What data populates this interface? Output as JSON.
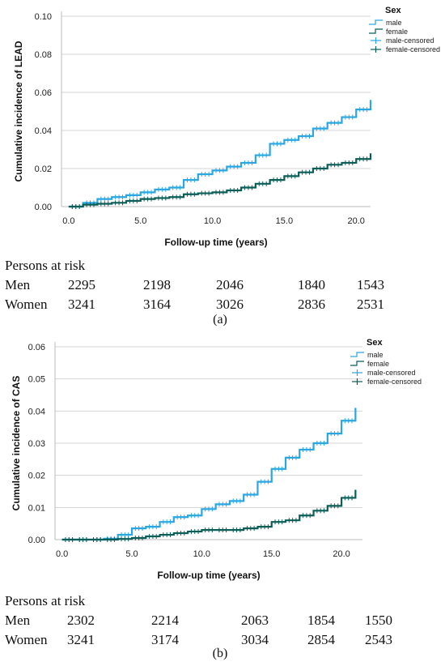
{
  "chart_data": [
    {
      "type": "line",
      "ylabel": "Cumulative incidence of LEAD",
      "xlabel": "Follow-up time (years)",
      "xlim": [
        -0.5,
        21
      ],
      "ylim": [
        0,
        0.1
      ],
      "x_ticks": [
        "0.0",
        "5.0",
        "10.0",
        "15.0",
        "20.0"
      ],
      "y_ticks": [
        "0.00",
        "0.02",
        "0.04",
        "0.06",
        "0.08",
        "0.10"
      ],
      "grid": true,
      "legend_position": "top-right",
      "legend": {
        "title": "Sex",
        "entries": [
          "male",
          "female",
          "male-censored",
          "female-censored"
        ]
      },
      "series": [
        {
          "name": "male",
          "color": "#2aa7e2",
          "x": [
            0,
            1,
            2,
            3,
            4,
            5,
            6,
            7,
            8,
            9,
            10,
            11,
            12,
            13,
            14,
            15,
            16,
            17,
            18,
            19,
            20,
            21
          ],
          "y": [
            0,
            0.002,
            0.004,
            0.005,
            0.006,
            0.0075,
            0.009,
            0.01,
            0.014,
            0.017,
            0.019,
            0.021,
            0.023,
            0.027,
            0.033,
            0.035,
            0.037,
            0.041,
            0.044,
            0.047,
            0.051,
            0.056
          ]
        },
        {
          "name": "female",
          "color": "#0b5e57",
          "x": [
            0,
            1,
            2,
            3,
            4,
            5,
            6,
            7,
            8,
            9,
            10,
            11,
            12,
            13,
            14,
            15,
            16,
            17,
            18,
            19,
            20,
            21
          ],
          "y": [
            0,
            0.001,
            0.0015,
            0.002,
            0.003,
            0.004,
            0.0045,
            0.005,
            0.0065,
            0.007,
            0.0075,
            0.0085,
            0.01,
            0.012,
            0.014,
            0.016,
            0.018,
            0.02,
            0.022,
            0.023,
            0.025,
            0.028
          ]
        }
      ],
      "persons_at_risk": {
        "header": "Persons at risk",
        "rows": [
          {
            "label": "Men",
            "values": [
              "2295",
              "2198",
              "2046",
              "1840",
              "1543"
            ]
          },
          {
            "label": "Women",
            "values": [
              "3241",
              "3164",
              "3026",
              "2836",
              "2531"
            ]
          }
        ]
      },
      "caption": "(a)"
    },
    {
      "type": "line",
      "ylabel": "Cumulative incidence of CAS",
      "xlabel": "Follow-up time (years)",
      "xlim": [
        -0.5,
        21.5
      ],
      "ylim": [
        0,
        0.06
      ],
      "x_ticks": [
        "0.0",
        "5.0",
        "10.0",
        "15.0",
        "20.0"
      ],
      "y_ticks": [
        "0.00",
        "0.01",
        "0.02",
        "0.03",
        "0.04",
        "0.05",
        "0.06"
      ],
      "grid": true,
      "legend_position": "top-right",
      "legend": {
        "title": "Sex",
        "entries": [
          "male",
          "female",
          "male-censored",
          "female-censored"
        ]
      },
      "series": [
        {
          "name": "male",
          "color": "#2aa7e2",
          "x": [
            0,
            1,
            2,
            3,
            4,
            5,
            6,
            7,
            8,
            9,
            10,
            11,
            12,
            13,
            14,
            15,
            16,
            17,
            18,
            19,
            20,
            21
          ],
          "y": [
            0,
            0,
            0,
            0.0003,
            0.0015,
            0.0035,
            0.004,
            0.0055,
            0.007,
            0.0075,
            0.0095,
            0.011,
            0.012,
            0.014,
            0.018,
            0.022,
            0.0255,
            0.028,
            0.03,
            0.033,
            0.037,
            0.041
          ]
        },
        {
          "name": "female",
          "color": "#0b5e57",
          "x": [
            0,
            1,
            2,
            3,
            4,
            5,
            6,
            7,
            8,
            9,
            10,
            11,
            12,
            13,
            14,
            15,
            16,
            17,
            18,
            19,
            20,
            21
          ],
          "y": [
            0,
            0,
            0,
            0,
            0.0002,
            0.0005,
            0.001,
            0.0015,
            0.002,
            0.0025,
            0.003,
            0.003,
            0.003,
            0.0035,
            0.004,
            0.0055,
            0.006,
            0.0075,
            0.009,
            0.0105,
            0.013,
            0.0155
          ]
        }
      ],
      "persons_at_risk": {
        "header": "Persons at risk",
        "rows": [
          {
            "label": "Men",
            "values": [
              "2302",
              "2214",
              "2063",
              "1854",
              "1550"
            ]
          },
          {
            "label": "Women",
            "values": [
              "3241",
              "3174",
              "3034",
              "2854",
              "2543"
            ]
          }
        ]
      },
      "caption": "(b)"
    }
  ]
}
